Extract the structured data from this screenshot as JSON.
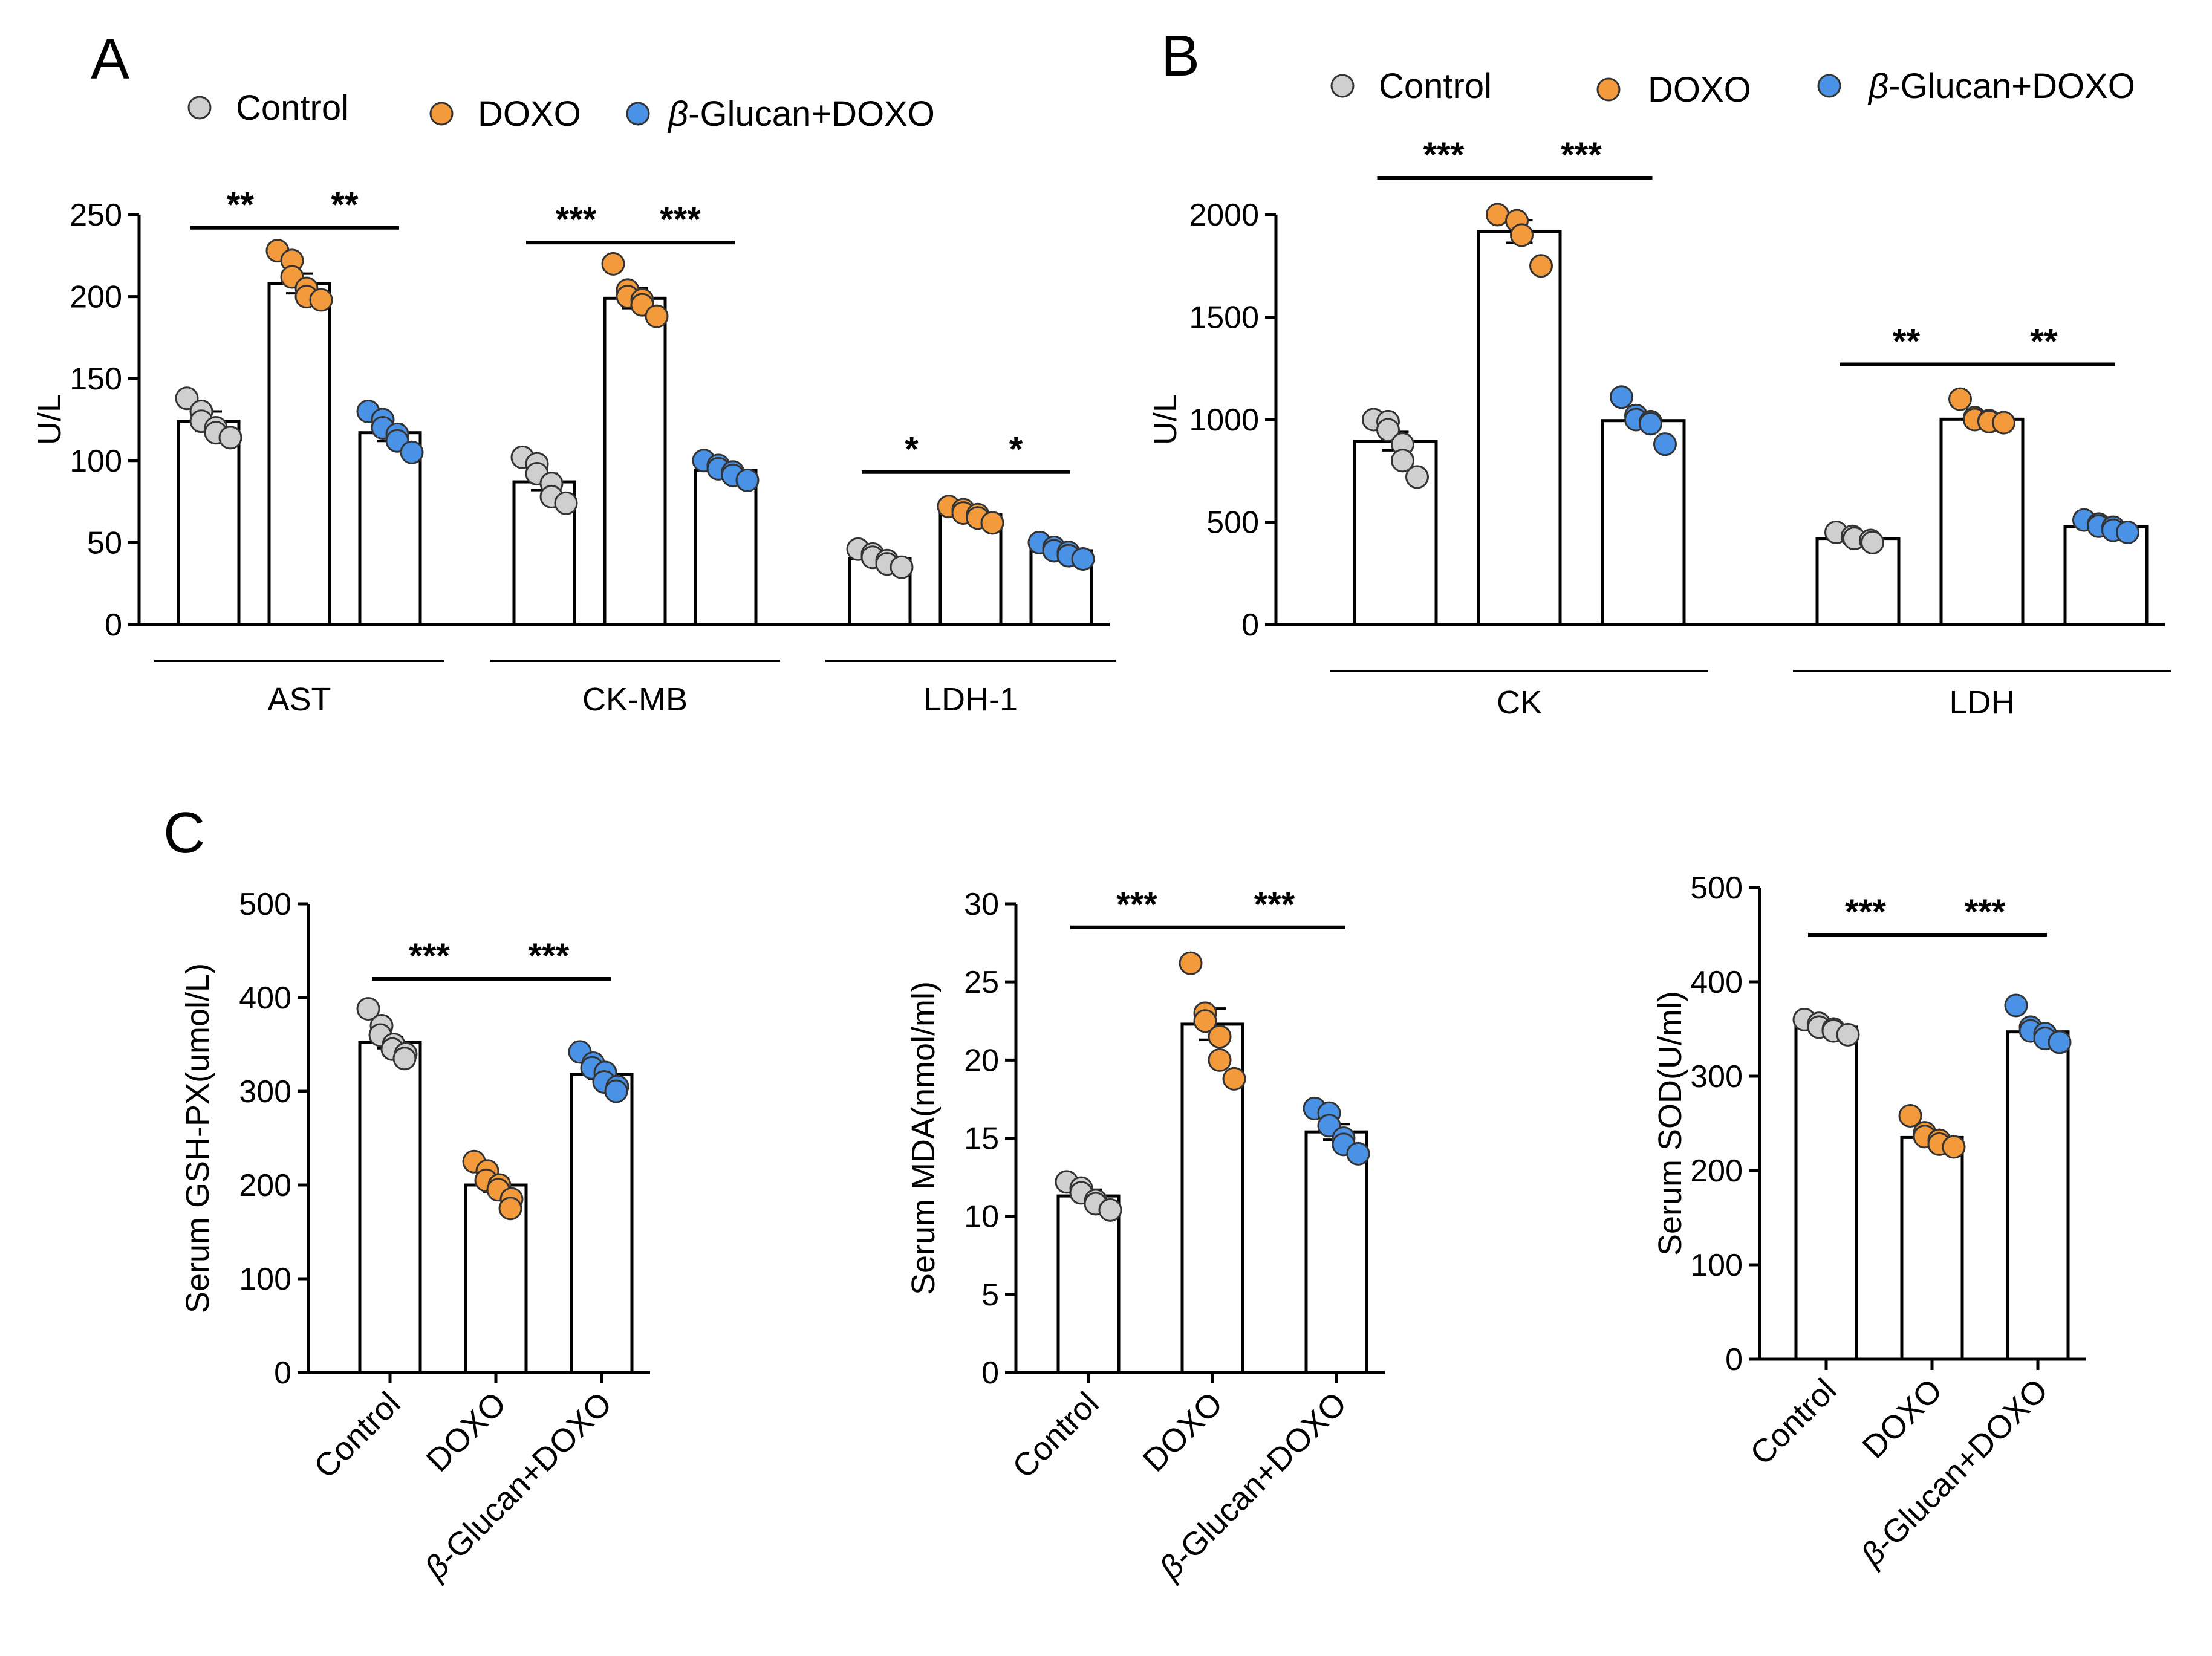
{
  "colors": {
    "Control": "#cfcfcf",
    "DOXO": "#f39a3c",
    "beta-Glucan+DOXO": "#4a92e6"
  },
  "legend": {
    "items": [
      {
        "key": "Control",
        "label": "Control",
        "italic_prefix": ""
      },
      {
        "key": "DOXO",
        "label": "DOXO",
        "italic_prefix": ""
      },
      {
        "key": "beta-Glucan+DOXO",
        "label": "-Glucan+DOXO",
        "italic_prefix": "β"
      }
    ]
  },
  "chart_data": [
    {
      "panel": "A",
      "type": "bar",
      "ylabel": "U/L",
      "ylim": [
        0,
        250
      ],
      "yticks": [
        0,
        50,
        100,
        150,
        200,
        250
      ],
      "groups": [
        {
          "label": "AST",
          "means": [
            124,
            208,
            117
          ],
          "sem": [
            6,
            6,
            5
          ],
          "points": [
            [
              138,
              130,
              124,
              120,
              117,
              114
            ],
            [
              228,
              222,
              212,
              205,
              200,
              198
            ],
            [
              130,
              125,
              120,
              116,
              112,
              105
            ]
          ],
          "comparisons": [
            {
              "from": 0,
              "to": 1,
              "label": "**",
              "y": 242
            },
            {
              "from": 1,
              "to": 2,
              "label": "**",
              "y": 242
            }
          ]
        },
        {
          "label": "CK-MB",
          "means": [
            87,
            199,
            94
          ],
          "sem": [
            5,
            6,
            3
          ],
          "points": [
            [
              102,
              98,
              92,
              86,
              78,
              74
            ],
            [
              220,
              204,
              200,
              198,
              195,
              188
            ],
            [
              100,
              97,
              95,
              93,
              91,
              88
            ]
          ],
          "comparisons": [
            {
              "from": 0,
              "to": 1,
              "label": "***",
              "y": 233
            },
            {
              "from": 1,
              "to": 2,
              "label": "***",
              "y": 233
            }
          ]
        },
        {
          "label": "LDH-1",
          "means": [
            40,
            67,
            45
          ],
          "sem": [
            2,
            2,
            2
          ],
          "points": [
            [
              46,
              43,
              41,
              39,
              37,
              35
            ],
            [
              72,
              70,
              68,
              67,
              65,
              62
            ],
            [
              50,
              47,
              45,
              44,
              42,
              40
            ]
          ],
          "comparisons": [
            {
              "from": 0,
              "to": 1,
              "label": "*",
              "y": 93
            },
            {
              "from": 1,
              "to": 2,
              "label": "*",
              "y": 93
            }
          ]
        }
      ]
    },
    {
      "panel": "B",
      "type": "bar",
      "ylabel": "U/L",
      "ylim": [
        0,
        2000
      ],
      "yticks": [
        0,
        500,
        1000,
        1500,
        2000
      ],
      "groups": [
        {
          "label": "CK",
          "means": [
            895,
            1918,
            995
          ],
          "sem": [
            45,
            55,
            22
          ],
          "points": [
            [
              1000,
              990,
              950,
              880,
              800,
              720
            ],
            [
              2000,
              1970,
              1900,
              1750
            ],
            [
              1110,
              1020,
              1000,
              990,
              980,
              880
            ]
          ],
          "comparisons": [
            {
              "from": 0,
              "to": 1,
              "label": "***",
              "y": 2180
            },
            {
              "from": 1,
              "to": 2,
              "label": "***",
              "y": 2180
            }
          ]
        },
        {
          "label": "LDH",
          "means": [
            420,
            1002,
            478
          ],
          "sem": [
            12,
            15,
            10
          ],
          "points": [
            [
              450,
              430,
              420,
              410,
              400
            ],
            [
              1100,
              1010,
              1000,
              995,
              990,
              985
            ],
            [
              510,
              490,
              480,
              475,
              460,
              450
            ]
          ],
          "comparisons": [
            {
              "from": 0,
              "to": 1,
              "label": "**",
              "y": 1270
            },
            {
              "from": 1,
              "to": 2,
              "label": "**",
              "y": 1270
            }
          ]
        }
      ]
    },
    {
      "panel": "C",
      "type": "bar",
      "ylabel": "Serum GSH-PX(umol/L)",
      "ylim": [
        0,
        500
      ],
      "yticks": [
        0,
        100,
        200,
        300,
        400,
        500
      ],
      "categories": [
        "Control",
        "DOXO",
        "-Glucan+DOXO"
      ],
      "means": [
        352,
        200,
        318
      ],
      "sem": [
        6,
        7,
        5
      ],
      "points": [
        [
          388,
          370,
          360,
          350,
          345,
          340,
          335
        ],
        [
          225,
          215,
          205,
          200,
          195,
          185,
          175
        ],
        [
          342,
          330,
          325,
          320,
          310,
          305,
          300
        ]
      ],
      "comparisons": [
        {
          "from": 0,
          "to": 1,
          "label": "***",
          "y": 420
        },
        {
          "from": 1,
          "to": 2,
          "label": "***",
          "y": 420
        }
      ]
    },
    {
      "panel": "",
      "type": "bar",
      "ylabel": "Serum MDA(nmol/ml)",
      "ylim": [
        0,
        30
      ],
      "yticks": [
        0,
        5,
        10,
        15,
        20,
        25,
        30
      ],
      "categories": [
        "Control",
        "DOXO",
        "-Glucan+DOXO"
      ],
      "means": [
        11.3,
        22.3,
        15.4
      ],
      "sem": [
        0.4,
        1.0,
        0.5
      ],
      "points": [
        [
          12.2,
          11.8,
          11.5,
          11.0,
          10.8,
          10.4
        ],
        [
          26.2,
          23.0,
          22.5,
          21.5,
          20.0,
          18.8
        ],
        [
          16.9,
          16.6,
          15.8,
          15.0,
          14.6,
          14.0
        ]
      ],
      "comparisons": [
        {
          "from": 0,
          "to": 1,
          "label": "***",
          "y": 28.5
        },
        {
          "from": 1,
          "to": 2,
          "label": "***",
          "y": 28.5
        }
      ]
    },
    {
      "panel": "",
      "type": "bar",
      "ylabel": "Serum SOD(U/ml)",
      "ylim": [
        0,
        500
      ],
      "yticks": [
        0,
        100,
        200,
        300,
        400,
        500
      ],
      "categories": [
        "Control",
        "DOXO",
        "-Glucan+DOXO"
      ],
      "means": [
        352,
        235,
        347
      ],
      "sem": [
        4,
        5,
        6
      ],
      "points": [
        [
          360,
          356,
          352,
          350,
          348,
          344
        ],
        [
          258,
          240,
          236,
          232,
          228,
          225
        ],
        [
          375,
          352,
          348,
          345,
          340,
          336
        ]
      ],
      "comparisons": [
        {
          "from": 0,
          "to": 1,
          "label": "***",
          "y": 450
        },
        {
          "from": 1,
          "to": 2,
          "label": "***",
          "y": 450
        }
      ]
    }
  ]
}
